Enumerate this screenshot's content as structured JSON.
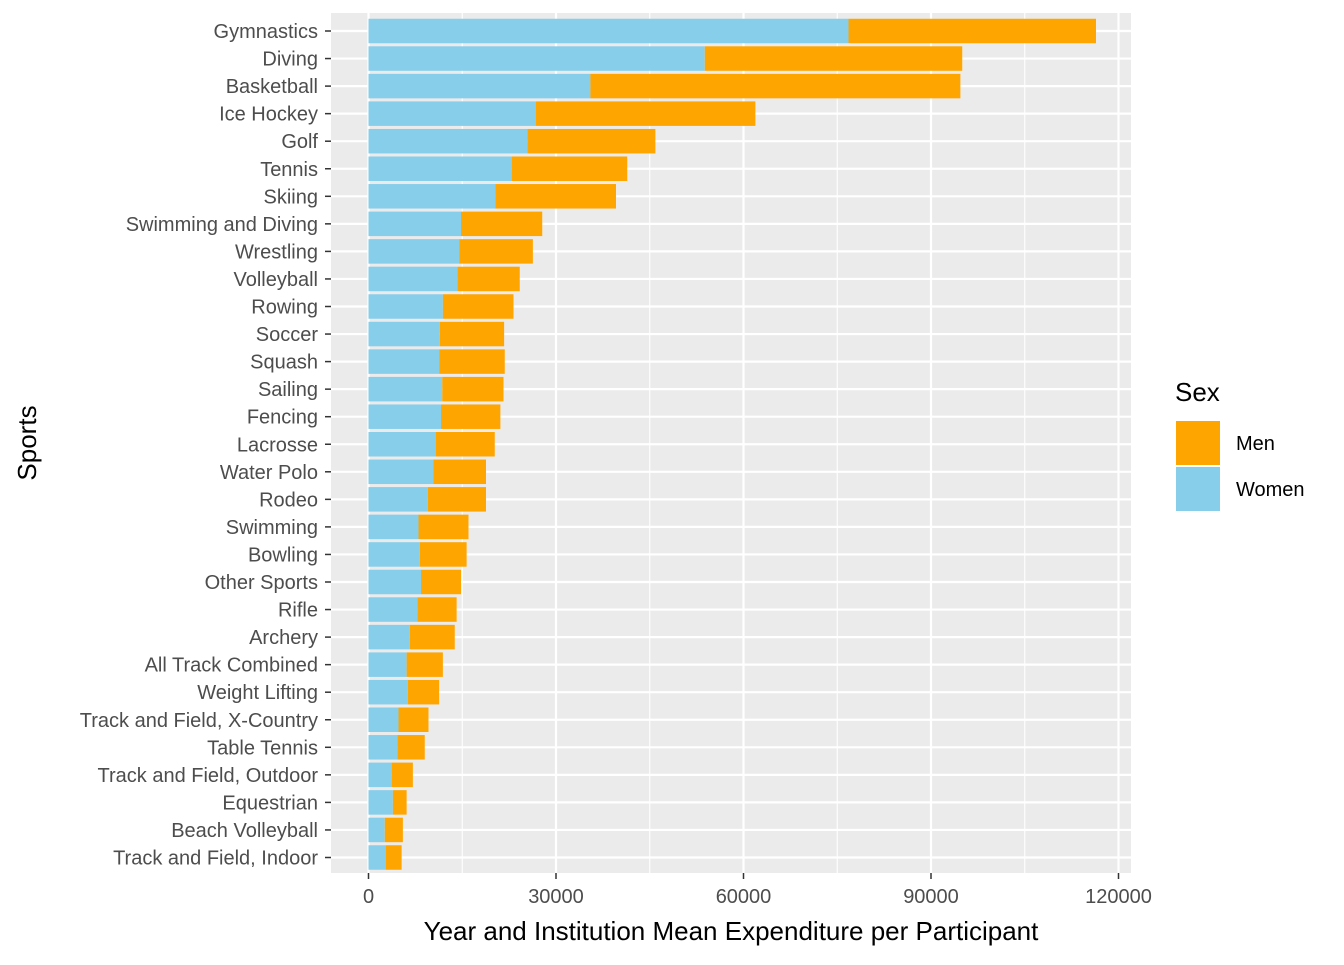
{
  "chart_data": {
    "type": "bar",
    "orientation": "horizontal",
    "stacked": true,
    "xlabel": "Year and Institution Mean Expenditure per Participant",
    "ylabel": "Sports",
    "xlim": [
      -6000,
      122000
    ],
    "xticks": [
      0,
      30000,
      60000,
      90000,
      120000
    ],
    "xtick_labels": [
      "0",
      "30000",
      "60000",
      "90000",
      "120000"
    ],
    "grid": true,
    "legend": {
      "title": "Sex",
      "position": "right",
      "entries": [
        "Men",
        "Women"
      ]
    },
    "categories": [
      "Gymnastics",
      "Diving",
      "Basketball",
      "Ice Hockey",
      "Golf",
      "Tennis",
      "Skiing",
      "Swimming and Diving",
      "Wrestling",
      "Volleyball",
      "Rowing",
      "Soccer",
      "Squash",
      "Sailing",
      "Fencing",
      "Lacrosse",
      "Water Polo",
      "Rodeo",
      "Swimming",
      "Bowling",
      "Other Sports",
      "Rifle",
      "Archery",
      "All Track Combined",
      "Weight Lifting",
      "Track and Field, X-Country",
      "Table Tennis",
      "Track and Field, Outdoor",
      "Equestrian",
      "Beach Volleyball",
      "Track and Field, Indoor"
    ],
    "series": [
      {
        "name": "Women",
        "color": "#87CEEB",
        "values": [
          76800,
          53800,
          35500,
          26800,
          25400,
          22900,
          20300,
          14800,
          14500,
          14200,
          11900,
          11400,
          11300,
          11800,
          11600,
          10800,
          10400,
          9500,
          8000,
          8200,
          8400,
          7800,
          6600,
          6100,
          6300,
          4800,
          4600,
          3700,
          3900,
          2600,
          2800
        ]
      },
      {
        "name": "Men",
        "color": "#FFA500",
        "values": [
          39600,
          41200,
          59200,
          35100,
          20500,
          18500,
          19300,
          13000,
          11800,
          10000,
          11300,
          10300,
          10500,
          9800,
          9500,
          9400,
          8400,
          9300,
          8000,
          7500,
          6400,
          6300,
          7200,
          5800,
          5000,
          4800,
          4400,
          3400,
          2200,
          2900,
          2500
        ]
      }
    ],
    "colors": {
      "panel": "#EBEBEB",
      "grid": "#FFFFFF",
      "tick_text": "#4D4D4D",
      "tick": "#333333"
    }
  }
}
